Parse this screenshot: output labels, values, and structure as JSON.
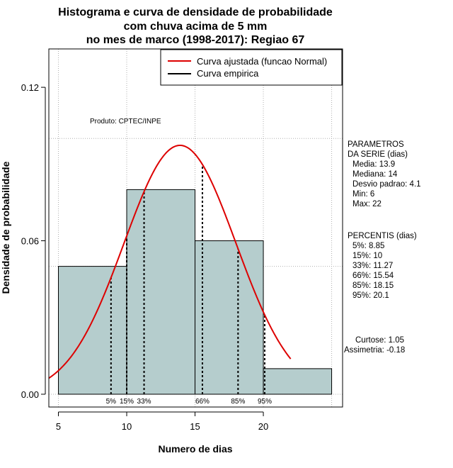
{
  "chart_data": {
    "type": "bar",
    "title_lines": [
      "Histograma e curva de densidade de probabilidade",
      "com chuva acima de 5 mm",
      "no mes de marco (1998-2017): Regiao 67"
    ],
    "xlabel": "Numero de dias",
    "ylabel": "Densidade de probabilidade",
    "xlim": [
      4.3,
      25.8
    ],
    "ylim": [
      -0.005,
      0.135
    ],
    "x_ticks": [
      5,
      10,
      15,
      20
    ],
    "y_ticks": [
      0.0,
      0.06,
      0.12
    ],
    "y_tick_labels": [
      "0.00",
      "0.06",
      "0.12"
    ],
    "grid": true,
    "bins": [
      {
        "start": 5,
        "end": 10,
        "density": 0.05
      },
      {
        "start": 10,
        "end": 15,
        "density": 0.08
      },
      {
        "start": 15,
        "end": 20,
        "density": 0.06
      },
      {
        "start": 20,
        "end": 25,
        "density": 0.01
      }
    ],
    "bar_color": "#b5cdcd",
    "fitted_curve": {
      "name": "Curva ajustada (funcao Normal)",
      "distribution": "normal",
      "mean": 13.9,
      "sd": 4.1,
      "x_range": [
        4.3,
        22
      ],
      "color": "#dd0000"
    },
    "empirical_curve": {
      "name": "Curva empirica",
      "color": "#000000"
    },
    "percentiles": [
      {
        "label": "5%",
        "value": 8.85
      },
      {
        "label": "15%",
        "value": 10
      },
      {
        "label": "33%",
        "value": 11.27
      },
      {
        "label": "66%",
        "value": 15.54
      },
      {
        "label": "85%",
        "value": 18.15
      },
      {
        "label": "95%",
        "value": 20.1
      }
    ],
    "credit": "Produto: CPTEC/INPE",
    "legend_position": "top-right"
  },
  "stats": {
    "params_title": [
      "PARAMETROS",
      "DA SERIE (dias)"
    ],
    "params": [
      "Media: 13.9",
      "Mediana: 14",
      "Desvio padrao: 4.1",
      "Min: 6",
      "Max: 22"
    ],
    "percentis_title": "PERCENTIS (dias)",
    "percentis": [
      "5%: 8.85",
      "15%: 10",
      "33%: 11.27",
      "66%: 15.54",
      "85%: 18.15",
      "95%: 20.1"
    ],
    "curtose": "Curtose: 1.05",
    "assimetria": "Assimetria: -0.18"
  }
}
